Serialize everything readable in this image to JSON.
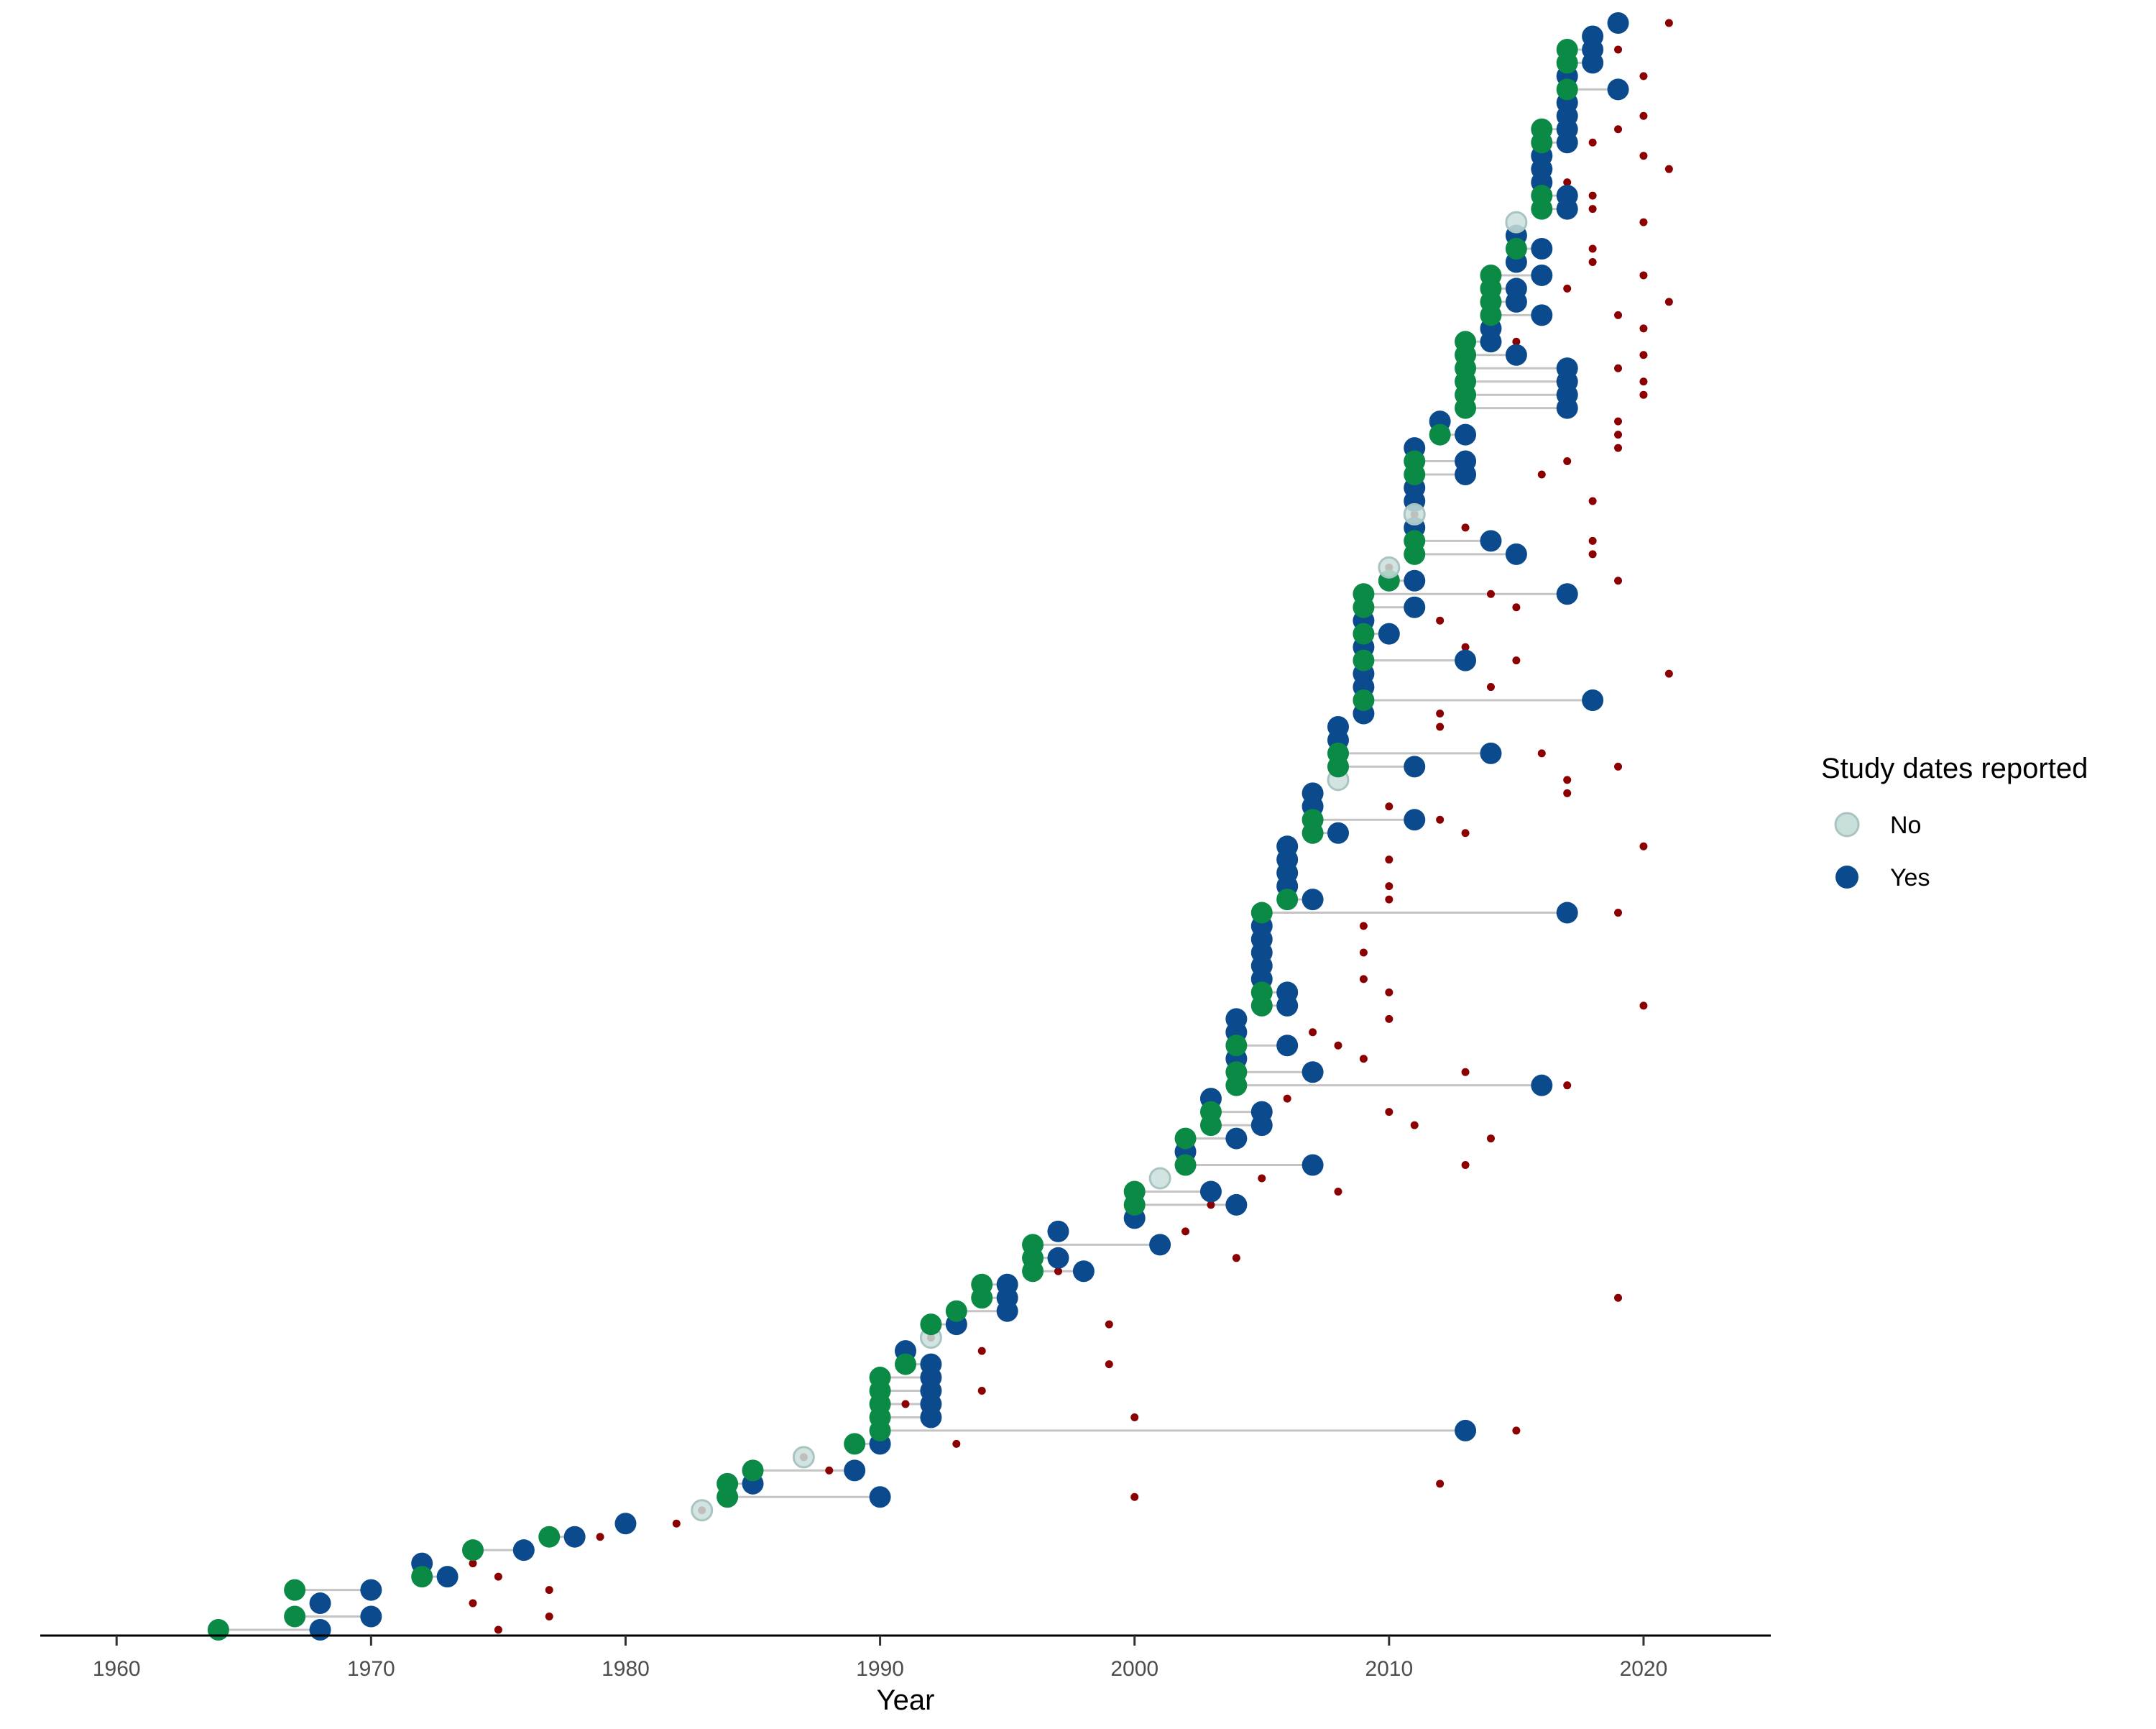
{
  "chart_data": {
    "type": "scatter",
    "title": "",
    "xlabel": "Year",
    "ylabel": "",
    "xlim": [
      1957,
      2025
    ],
    "x_ticks": [
      "1960",
      "1970",
      "1980",
      "1990",
      "2000",
      "2010",
      "2020"
    ],
    "grid": false,
    "legend": {
      "title": "Study dates reported",
      "position": "right",
      "entries": [
        "No",
        "Yes"
      ]
    },
    "colors": {
      "no": "#c9dfdc",
      "no_stroke": "#a9c4c1",
      "yes": "#0b4a8c",
      "start": "#0b8a45",
      "end_marker": "#8b0000",
      "segment": "#c4c4c4",
      "axis": "#000000"
    },
    "series": [
      {
        "columns": [
          "start_year",
          "end_year",
          "marker_year",
          "study_dates_reported"
        ],
        "rows": [
          [
            1964,
            1968,
            1975,
            "Yes"
          ],
          [
            1967,
            1970,
            1977,
            "Yes"
          ],
          [
            1968,
            1968,
            1974,
            "Yes"
          ],
          [
            1967,
            1970,
            1977,
            "Yes"
          ],
          [
            1972,
            1973,
            1975,
            "Yes"
          ],
          [
            1972,
            1972,
            1974,
            "Yes"
          ],
          [
            1974,
            1976,
            1974,
            "Yes"
          ],
          [
            1977,
            1978,
            1979,
            "Yes"
          ],
          [
            1980,
            1980,
            1982,
            "Yes"
          ],
          [
            1983,
            1983,
            1983,
            "No"
          ],
          [
            1984,
            1990,
            2000,
            "Yes"
          ],
          [
            1984,
            1985,
            2012,
            "Yes"
          ],
          [
            1985,
            1989,
            1988,
            "Yes"
          ],
          [
            1987,
            1987,
            1987,
            "No"
          ],
          [
            1989,
            1990,
            1993,
            "Yes"
          ],
          [
            1990,
            2013,
            2015,
            "Yes"
          ],
          [
            1990,
            1992,
            2000,
            "Yes"
          ],
          [
            1990,
            1992,
            1991,
            "Yes"
          ],
          [
            1990,
            1992,
            1994,
            "Yes"
          ],
          [
            1990,
            1992,
            1992,
            "Yes"
          ],
          [
            1991,
            1992,
            1999,
            "Yes"
          ],
          [
            1991,
            1991,
            1994,
            "Yes"
          ],
          [
            1992,
            1992,
            1992,
            "No"
          ],
          [
            1992,
            1993,
            1999,
            "Yes"
          ],
          [
            1993,
            1995,
            1995,
            "Yes"
          ],
          [
            1994,
            1995,
            2019,
            "Yes"
          ],
          [
            1994,
            1995,
            1995,
            "Yes"
          ],
          [
            1996,
            1998,
            1997,
            "Yes"
          ],
          [
            1996,
            1997,
            2004,
            "Yes"
          ],
          [
            1996,
            2001,
            2001,
            "Yes"
          ],
          [
            1997,
            1997,
            2002,
            "Yes"
          ],
          [
            2000,
            2000,
            2000,
            "Yes"
          ],
          [
            2000,
            2004,
            2003,
            "Yes"
          ],
          [
            2000,
            2003,
            2008,
            "Yes"
          ],
          [
            2001,
            2001,
            2005,
            "No"
          ],
          [
            2002,
            2007,
            2013,
            "Yes"
          ],
          [
            2002,
            2002,
            2002,
            "Yes"
          ],
          [
            2002,
            2004,
            2014,
            "Yes"
          ],
          [
            2003,
            2005,
            2011,
            "Yes"
          ],
          [
            2003,
            2005,
            2010,
            "Yes"
          ],
          [
            2003,
            2003,
            2006,
            "Yes"
          ],
          [
            2004,
            2016,
            2017,
            "Yes"
          ],
          [
            2004,
            2007,
            2013,
            "Yes"
          ],
          [
            2004,
            2004,
            2009,
            "Yes"
          ],
          [
            2004,
            2006,
            2008,
            "Yes"
          ],
          [
            2004,
            2004,
            2007,
            "Yes"
          ],
          [
            2004,
            2004,
            2010,
            "Yes"
          ],
          [
            2005,
            2006,
            2020,
            "Yes"
          ],
          [
            2005,
            2006,
            2010,
            "Yes"
          ],
          [
            2005,
            2005,
            2009,
            "Yes"
          ],
          [
            2005,
            2005,
            2005,
            "Yes"
          ],
          [
            2005,
            2005,
            2009,
            "Yes"
          ],
          [
            2005,
            2005,
            2005,
            "Yes"
          ],
          [
            2005,
            2005,
            2009,
            "Yes"
          ],
          [
            2005,
            2017,
            2019,
            "Yes"
          ],
          [
            2006,
            2007,
            2010,
            "Yes"
          ],
          [
            2006,
            2006,
            2010,
            "Yes"
          ],
          [
            2006,
            2006,
            2006,
            "Yes"
          ],
          [
            2006,
            2006,
            2010,
            "Yes"
          ],
          [
            2006,
            2006,
            2020,
            "Yes"
          ],
          [
            2007,
            2008,
            2013,
            "Yes"
          ],
          [
            2007,
            2011,
            2012,
            "Yes"
          ],
          [
            2007,
            2007,
            2010,
            "Yes"
          ],
          [
            2007,
            2007,
            2017,
            "Yes"
          ],
          [
            2008,
            2008,
            2017,
            "No"
          ],
          [
            2008,
            2011,
            2019,
            "Yes"
          ],
          [
            2008,
            2014,
            2016,
            "Yes"
          ],
          [
            2008,
            2008,
            2008,
            "Yes"
          ],
          [
            2008,
            2008,
            2012,
            "Yes"
          ],
          [
            2009,
            2009,
            2012,
            "Yes"
          ],
          [
            2009,
            2018,
            2018,
            "Yes"
          ],
          [
            2009,
            2009,
            2014,
            "Yes"
          ],
          [
            2009,
            2009,
            2021,
            "Yes"
          ],
          [
            2009,
            2013,
            2015,
            "Yes"
          ],
          [
            2009,
            2009,
            2013,
            "Yes"
          ],
          [
            2009,
            2010,
            2010,
            "Yes"
          ],
          [
            2009,
            2009,
            2012,
            "Yes"
          ],
          [
            2009,
            2011,
            2015,
            "Yes"
          ],
          [
            2009,
            2017,
            2014,
            "Yes"
          ],
          [
            2010,
            2011,
            2019,
            "Yes"
          ],
          [
            2010,
            2010,
            2010,
            "No"
          ],
          [
            2011,
            2015,
            2018,
            "Yes"
          ],
          [
            2011,
            2014,
            2018,
            "Yes"
          ],
          [
            2011,
            2011,
            2013,
            "Yes"
          ],
          [
            2011,
            2011,
            2011,
            "No"
          ],
          [
            2011,
            2011,
            2018,
            "Yes"
          ],
          [
            2011,
            2011,
            2011,
            "Yes"
          ],
          [
            2011,
            2013,
            2016,
            "Yes"
          ],
          [
            2011,
            2013,
            2017,
            "Yes"
          ],
          [
            2011,
            2011,
            2019,
            "Yes"
          ],
          [
            2012,
            2013,
            2019,
            "Yes"
          ],
          [
            2012,
            2012,
            2019,
            "Yes"
          ],
          [
            2013,
            2017,
            2017,
            "Yes"
          ],
          [
            2013,
            2017,
            2020,
            "Yes"
          ],
          [
            2013,
            2017,
            2020,
            "Yes"
          ],
          [
            2013,
            2017,
            2019,
            "Yes"
          ],
          [
            2013,
            2015,
            2020,
            "Yes"
          ],
          [
            2013,
            2014,
            2015,
            "Yes"
          ],
          [
            2014,
            2014,
            2020,
            "Yes"
          ],
          [
            2014,
            2016,
            2019,
            "Yes"
          ],
          [
            2014,
            2015,
            2021,
            "Yes"
          ],
          [
            2014,
            2015,
            2017,
            "Yes"
          ],
          [
            2014,
            2016,
            2020,
            "Yes"
          ],
          [
            2015,
            2015,
            2018,
            "Yes"
          ],
          [
            2015,
            2016,
            2018,
            "Yes"
          ],
          [
            2015,
            2015,
            2015,
            "Yes"
          ],
          [
            2015,
            2015,
            2020,
            "No"
          ],
          [
            2016,
            2017,
            2018,
            "Yes"
          ],
          [
            2016,
            2017,
            2018,
            "Yes"
          ],
          [
            2016,
            2016,
            2017,
            "Yes"
          ],
          [
            2016,
            2016,
            2021,
            "Yes"
          ],
          [
            2016,
            2016,
            2020,
            "Yes"
          ],
          [
            2016,
            2017,
            2018,
            "Yes"
          ],
          [
            2016,
            2017,
            2019,
            "Yes"
          ],
          [
            2017,
            2017,
            2020,
            "Yes"
          ],
          [
            2017,
            2017,
            2017,
            "Yes"
          ],
          [
            2017,
            2019,
            2019,
            "Yes"
          ],
          [
            2017,
            2017,
            2020,
            "Yes"
          ],
          [
            2017,
            2018,
            2018,
            "Yes"
          ],
          [
            2017,
            2018,
            2019,
            "Yes"
          ],
          [
            2018,
            2018,
            2018,
            "Yes"
          ],
          [
            2019,
            2019,
            2021,
            "Yes"
          ]
        ]
      }
    ]
  }
}
